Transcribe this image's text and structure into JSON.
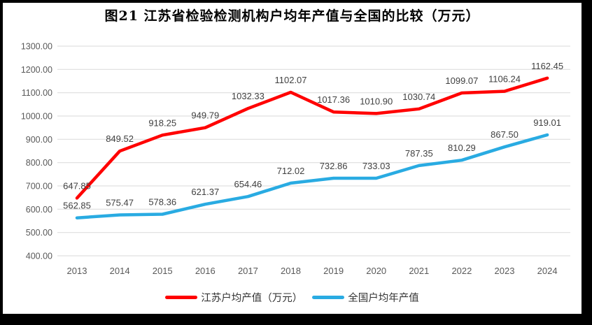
{
  "figure": {
    "title": "图21  江苏省检验检测机构户均年产值与全国的比较（万元）"
  },
  "chart_data": {
    "type": "line",
    "title": "图21  江苏省检验检测机构户均年产值与全国的比较（万元）",
    "categories": [
      "2013",
      "2014",
      "2015",
      "2016",
      "2017",
      "2018",
      "2019",
      "2020",
      "2021",
      "2022",
      "2023",
      "2024"
    ],
    "series": [
      {
        "name": "江苏户均产值（万元）",
        "color": "#FF0000",
        "values": [
          647.85,
          849.52,
          918.25,
          949.79,
          1032.33,
          1102.07,
          1017.36,
          1010.9,
          1030.74,
          1099.07,
          1106.24,
          1162.45
        ]
      },
      {
        "name": "全国户均年产值",
        "color": "#29ABE2",
        "values": [
          562.85,
          575.47,
          578.36,
          621.37,
          654.46,
          712.02,
          732.86,
          733.03,
          787.35,
          810.29,
          867.5,
          919.01
        ]
      }
    ],
    "xlabel": "",
    "ylabel": "",
    "ylim": [
      400,
      1300
    ],
    "y_tick_step": 100,
    "y_ticks": [
      "1300.00",
      "1200.00",
      "1100.00",
      "1000.00",
      "900.00",
      "800.00",
      "700.00",
      "600.00",
      "500.00",
      "400.00"
    ],
    "grid": true,
    "data_labels": true,
    "legend_position": "bottom"
  },
  "colors": {
    "grid": "#D9D9D9",
    "tick_text": "#595959",
    "label_text": "#404040",
    "frame": "#000000",
    "background": "#FFFFFF"
  }
}
